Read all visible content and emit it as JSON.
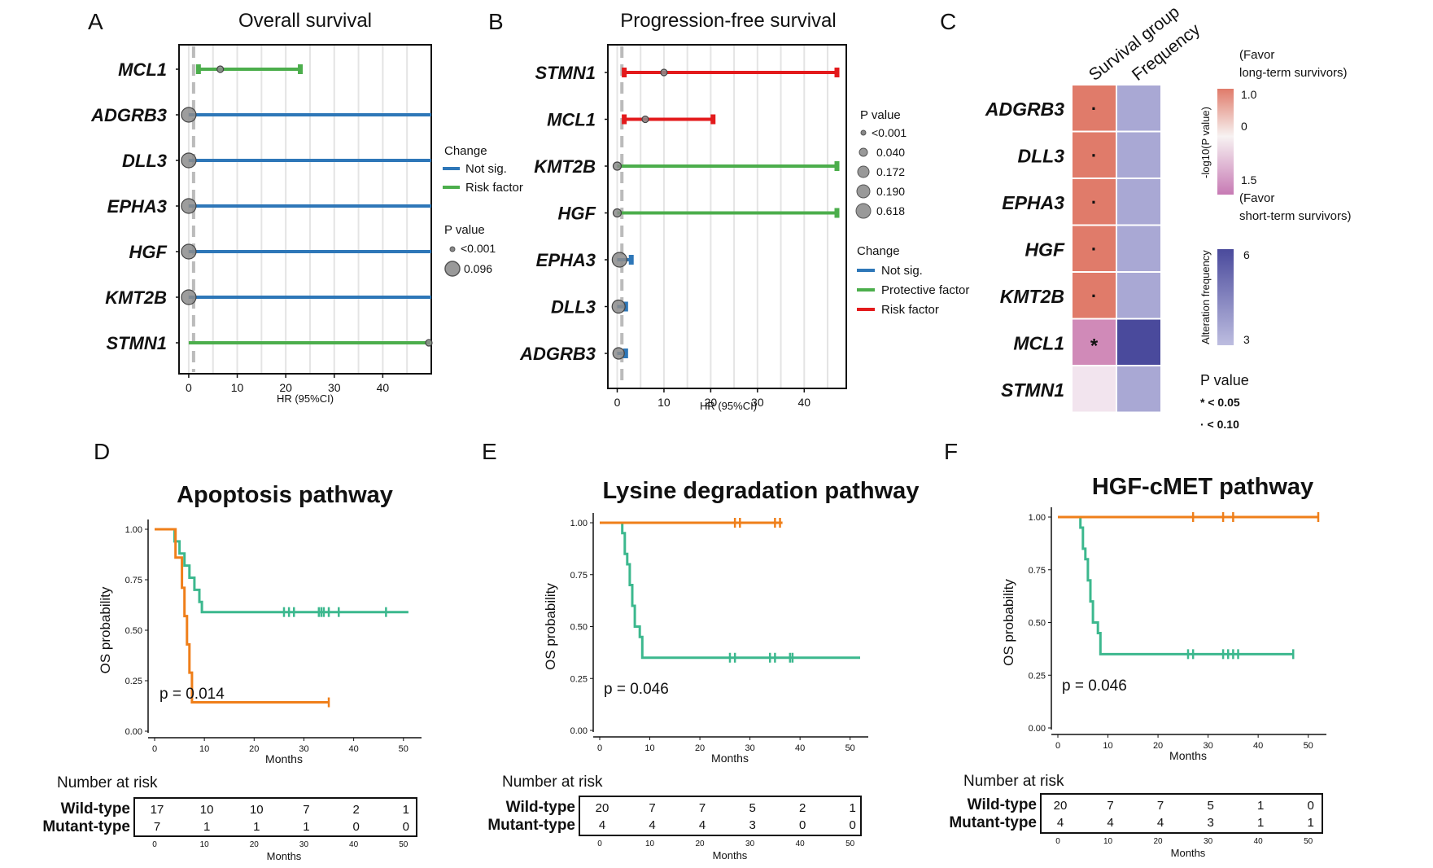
{
  "colors": {
    "not_sig": "#2e77b8",
    "risk": "#4cae4c",
    "protective": "#4cae4c",
    "risk_pfs": "#e31a1c",
    "wild": "#3cb88e",
    "mutant": "#ef7f1a",
    "heat_pos": "#e07b6a",
    "heat_neg": "#d08ab8",
    "heat_pale": "#f2e4ee",
    "freq_low": "#a9a8d4",
    "freq_high": "#4a4a9c"
  },
  "panelA": {
    "letter": "A",
    "title": "Overall survival",
    "xlabel": "HR (95%CI)",
    "ticks": [
      "0",
      "10",
      "20",
      "30",
      "40"
    ],
    "legend": {
      "change_title": "Change",
      "change_items": [
        "Not sig.",
        "Risk factor"
      ],
      "p_title": "P value",
      "p_items": [
        "<0.001",
        "0.096"
      ]
    }
  },
  "panelB": {
    "letter": "B",
    "title": "Progression-free survival",
    "xlabel": "HR (95%CI)",
    "ticks": [
      "0",
      "10",
      "20",
      "30",
      "40"
    ],
    "legend": {
      "p_title": "P value",
      "p_items": [
        "<0.001",
        "0.040",
        "0.172",
        "0.190",
        "0.618"
      ],
      "change_title": "Change",
      "change_items": [
        "Not sig.",
        "Protective factor",
        "Risk factor"
      ]
    }
  },
  "panelC": {
    "letter": "C",
    "col_labels": [
      "Survival group",
      "Frequency"
    ],
    "genes": [
      "ADGRB3",
      "DLL3",
      "EPHA3",
      "HGF",
      "KMT2B",
      "MCL1",
      "STMN1"
    ],
    "marks": [
      "·",
      "·",
      "·",
      "·",
      "·",
      "*",
      ""
    ],
    "legend1": {
      "top": "(Favor",
      "top2": "long-term survivors)",
      "v1": "1.0",
      "v0": "0",
      "v15": "1.5",
      "bottom": "(Favor",
      "bottom2": "short-term survivors)",
      "axis": "-log10(P value)"
    },
    "legend2": {
      "axis": "Alteration frequency",
      "hi": "6",
      "lo": "3"
    },
    "pvalue": {
      "title": "P value",
      "l1": "* < 0.05",
      "l2": "· < 0.10"
    }
  },
  "km_common": {
    "ylabel": "OS probability",
    "xlabel": "Months",
    "yticks": [
      "0.00",
      "0.25",
      "0.50",
      "0.75",
      "1.00"
    ],
    "xticks": [
      "0",
      "10",
      "20",
      "30",
      "40",
      "50"
    ],
    "risk_title": "Number at risk",
    "wild_label": "Wild-type",
    "mutant_label": "Mutant-type"
  },
  "panelD": {
    "letter": "D",
    "title": "Apoptosis pathway",
    "pvalue": "p = 0.014",
    "risk_wild": [
      "17",
      "10",
      "10",
      "7",
      "2",
      "1"
    ],
    "risk_mutant": [
      "7",
      "1",
      "1",
      "1",
      "0",
      "0"
    ]
  },
  "panelE": {
    "letter": "E",
    "title": "Lysine degradation pathway",
    "pvalue": "p = 0.046",
    "risk_wild": [
      "20",
      "7",
      "7",
      "5",
      "2",
      "1"
    ],
    "risk_mutant": [
      "4",
      "4",
      "4",
      "3",
      "0",
      "0"
    ]
  },
  "panelF": {
    "letter": "F",
    "title": "HGF-cMET pathway",
    "pvalue": "p = 0.046",
    "risk_wild": [
      "20",
      "7",
      "7",
      "5",
      "1",
      "0"
    ],
    "risk_mutant": [
      "4",
      "4",
      "4",
      "3",
      "1",
      "1"
    ]
  },
  "chart_data": [
    {
      "type": "forest",
      "title": "Overall survival",
      "xlabel": "HR (95%CI)",
      "xlim": [
        -2,
        50
      ],
      "rows": [
        {
          "gene": "MCL1",
          "hr": 6.5,
          "lo": 2,
          "hi": 23,
          "change": "Risk factor",
          "p": "<0.001"
        },
        {
          "gene": "ADGRB3",
          "hr": 0,
          "lo": 0,
          "hi": 50,
          "change": "Not sig.",
          "p": "0.096"
        },
        {
          "gene": "DLL3",
          "hr": 0,
          "lo": 0,
          "hi": 50,
          "change": "Not sig.",
          "p": "0.096"
        },
        {
          "gene": "EPHA3",
          "hr": 0,
          "lo": 0,
          "hi": 50,
          "change": "Not sig.",
          "p": "0.096"
        },
        {
          "gene": "HGF",
          "hr": 0,
          "lo": 0,
          "hi": 50,
          "change": "Not sig.",
          "p": "0.096"
        },
        {
          "gene": "KMT2B",
          "hr": 0,
          "lo": 0,
          "hi": 50,
          "change": "Not sig.",
          "p": "0.096"
        },
        {
          "gene": "STMN1",
          "hr": 49.5,
          "lo": 0,
          "hi": 50,
          "change": "Risk factor",
          "p": "<0.001"
        }
      ]
    },
    {
      "type": "forest",
      "title": "Progression-free survival",
      "xlabel": "HR (95%CI)",
      "xlim": [
        -2,
        49
      ],
      "rows": [
        {
          "gene": "STMN1",
          "hr": 10,
          "lo": 1.5,
          "hi": 47,
          "change": "Risk factor",
          "p": "<0.001"
        },
        {
          "gene": "MCL1",
          "hr": 6,
          "lo": 1.5,
          "hi": 20.5,
          "change": "Risk factor",
          "p": "<0.001"
        },
        {
          "gene": "KMT2B",
          "hr": 0,
          "lo": 0,
          "hi": 47,
          "change": "Protective factor",
          "p": "0.040"
        },
        {
          "gene": "HGF",
          "hr": 0,
          "lo": 0,
          "hi": 47,
          "change": "Protective factor",
          "p": "0.040"
        },
        {
          "gene": "EPHA3",
          "hr": 0.5,
          "lo": 0,
          "hi": 3,
          "change": "Not sig.",
          "p": "0.618"
        },
        {
          "gene": "DLL3",
          "hr": 0.3,
          "lo": 0,
          "hi": 1.8,
          "change": "Not sig.",
          "p": "0.190"
        },
        {
          "gene": "ADGRB3",
          "hr": 0.3,
          "lo": 0,
          "hi": 1.8,
          "change": "Not sig.",
          "p": "0.172"
        }
      ]
    },
    {
      "type": "heatmap",
      "columns": [
        "Survival group",
        "Frequency"
      ],
      "rows": [
        {
          "gene": "ADGRB3",
          "survival": 1.0,
          "frequency": 3,
          "sig": "·"
        },
        {
          "gene": "DLL3",
          "survival": 1.0,
          "frequency": 3,
          "sig": "·"
        },
        {
          "gene": "EPHA3",
          "survival": 1.0,
          "frequency": 3,
          "sig": "·"
        },
        {
          "gene": "HGF",
          "survival": 1.0,
          "frequency": 3,
          "sig": "·"
        },
        {
          "gene": "KMT2B",
          "survival": 1.0,
          "frequency": 3,
          "sig": "·"
        },
        {
          "gene": "MCL1",
          "survival": -1.5,
          "frequency": 6,
          "sig": "*"
        },
        {
          "gene": "STMN1",
          "survival": -0.2,
          "frequency": 3,
          "sig": ""
        }
      ]
    },
    {
      "type": "line",
      "title": "Apoptosis pathway",
      "xlim": [
        0,
        52
      ],
      "ylim": [
        0,
        1
      ],
      "series": [
        {
          "name": "Wild-type",
          "steps": [
            [
              0,
              1
            ],
            [
              4,
              1
            ],
            [
              4,
              0.94
            ],
            [
              5,
              0.94
            ],
            [
              5,
              0.88
            ],
            [
              6,
              0.88
            ],
            [
              6,
              0.82
            ],
            [
              7,
              0.82
            ],
            [
              7,
              0.76
            ],
            [
              8,
              0.76
            ],
            [
              8,
              0.7
            ],
            [
              9,
              0.7
            ],
            [
              9,
              0.64
            ],
            [
              9.5,
              0.64
            ],
            [
              9.5,
              0.59
            ],
            [
              51,
              0.59
            ]
          ],
          "censors": [
            26,
            27,
            28,
            33,
            33.5,
            34,
            35,
            37,
            46.5
          ]
        },
        {
          "name": "Mutant-type",
          "steps": [
            [
              0,
              1
            ],
            [
              4.2,
              1
            ],
            [
              4.2,
              0.86
            ],
            [
              5.5,
              0.86
            ],
            [
              5.5,
              0.71
            ],
            [
              6,
              0.71
            ],
            [
              6,
              0.57
            ],
            [
              6.5,
              0.57
            ],
            [
              6.5,
              0.43
            ],
            [
              7,
              0.43
            ],
            [
              7,
              0.29
            ],
            [
              7.5,
              0.29
            ],
            [
              7.5,
              0.143
            ],
            [
              35,
              0.143
            ]
          ],
          "censors": [
            35
          ]
        }
      ]
    },
    {
      "type": "line",
      "title": "Lysine degradation pathway",
      "xlim": [
        0,
        52
      ],
      "ylim": [
        0,
        1
      ],
      "series": [
        {
          "name": "Wild-type",
          "steps": [
            [
              0,
              1
            ],
            [
              4.5,
              1
            ],
            [
              4.5,
              0.95
            ],
            [
              5,
              0.95
            ],
            [
              5,
              0.85
            ],
            [
              5.5,
              0.85
            ],
            [
              5.5,
              0.8
            ],
            [
              6,
              0.8
            ],
            [
              6,
              0.7
            ],
            [
              6.5,
              0.7
            ],
            [
              6.5,
              0.6
            ],
            [
              7,
              0.6
            ],
            [
              7,
              0.5
            ],
            [
              8,
              0.5
            ],
            [
              8,
              0.45
            ],
            [
              8.5,
              0.45
            ],
            [
              8.5,
              0.35
            ],
            [
              52,
              0.35
            ]
          ],
          "censors": [
            26,
            27,
            34,
            35,
            38,
            38.5
          ]
        },
        {
          "name": "Mutant-type",
          "steps": [
            [
              0,
              1
            ],
            [
              36.5,
              1
            ]
          ],
          "censors": [
            27,
            28,
            35,
            36
          ]
        }
      ]
    },
    {
      "type": "line",
      "title": "HGF-cMET pathway",
      "xlim": [
        0,
        52
      ],
      "ylim": [
        0,
        1
      ],
      "series": [
        {
          "name": "Wild-type",
          "steps": [
            [
              0,
              1
            ],
            [
              4.5,
              1
            ],
            [
              4.5,
              0.95
            ],
            [
              5,
              0.95
            ],
            [
              5,
              0.85
            ],
            [
              5.5,
              0.85
            ],
            [
              5.5,
              0.8
            ],
            [
              6,
              0.8
            ],
            [
              6,
              0.7
            ],
            [
              6.5,
              0.7
            ],
            [
              6.5,
              0.6
            ],
            [
              7,
              0.6
            ],
            [
              7,
              0.5
            ],
            [
              8,
              0.5
            ],
            [
              8,
              0.45
            ],
            [
              8.5,
              0.45
            ],
            [
              8.5,
              0.35
            ],
            [
              47,
              0.35
            ]
          ],
          "censors": [
            26,
            27,
            33,
            34,
            35,
            36,
            47
          ]
        },
        {
          "name": "Mutant-type",
          "steps": [
            [
              0,
              1
            ],
            [
              52,
              1
            ]
          ],
          "censors": [
            27,
            33,
            35,
            52
          ]
        }
      ]
    }
  ]
}
